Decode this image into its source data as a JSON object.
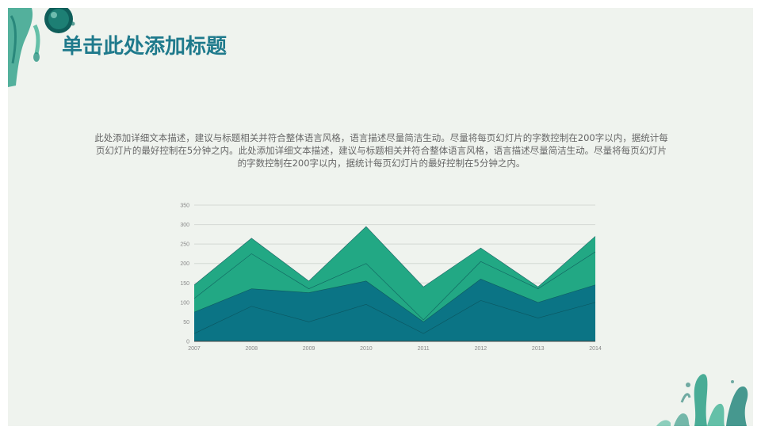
{
  "slide": {
    "title": "单击此处添加标题",
    "description": "此处添加详细文本描述，建议与标题相关并符合整体语言风格，语言描述尽量简洁生动。尽量将每页幻灯片的字数控制在200字以内，据统计每页幻灯片的最好控制在5分钟之内。此处添加详细文本描述，建议与标题相关并符合整体语言风格，语言描述尽量简洁生动。尽量将每页幻灯片的字数控制在200字以内，据统计每页幻灯片的最好控制在5分钟之内。"
  },
  "colors": {
    "title": "#1f7a8c",
    "series_bottom": "#0b7485",
    "series_top": "#22a884",
    "series_mid": "#12917f",
    "gridline": "#d4d9d4",
    "axis": "#444444"
  },
  "chart_data": {
    "type": "area",
    "stacked": true,
    "categories": [
      "2007",
      "2008",
      "2009",
      "2010",
      "2011",
      "2012",
      "2013",
      "2014"
    ],
    "series": [
      {
        "values": [
          20,
          90,
          50,
          95,
          20,
          105,
          60,
          100
        ]
      },
      {
        "values": [
          55,
          45,
          75,
          60,
          30,
          55,
          40,
          45
        ]
      },
      {
        "values": [
          35,
          90,
          10,
          45,
          5,
          45,
          35,
          85
        ]
      },
      {
        "values": [
          35,
          40,
          20,
          95,
          85,
          35,
          5,
          40
        ]
      }
    ],
    "ylim": [
      0,
      350
    ],
    "yticks": [
      "0",
      "50",
      "100",
      "150",
      "200",
      "250",
      "300",
      "350"
    ],
    "grid": true,
    "legend": "none",
    "xlabel": "",
    "ylabel": ""
  }
}
